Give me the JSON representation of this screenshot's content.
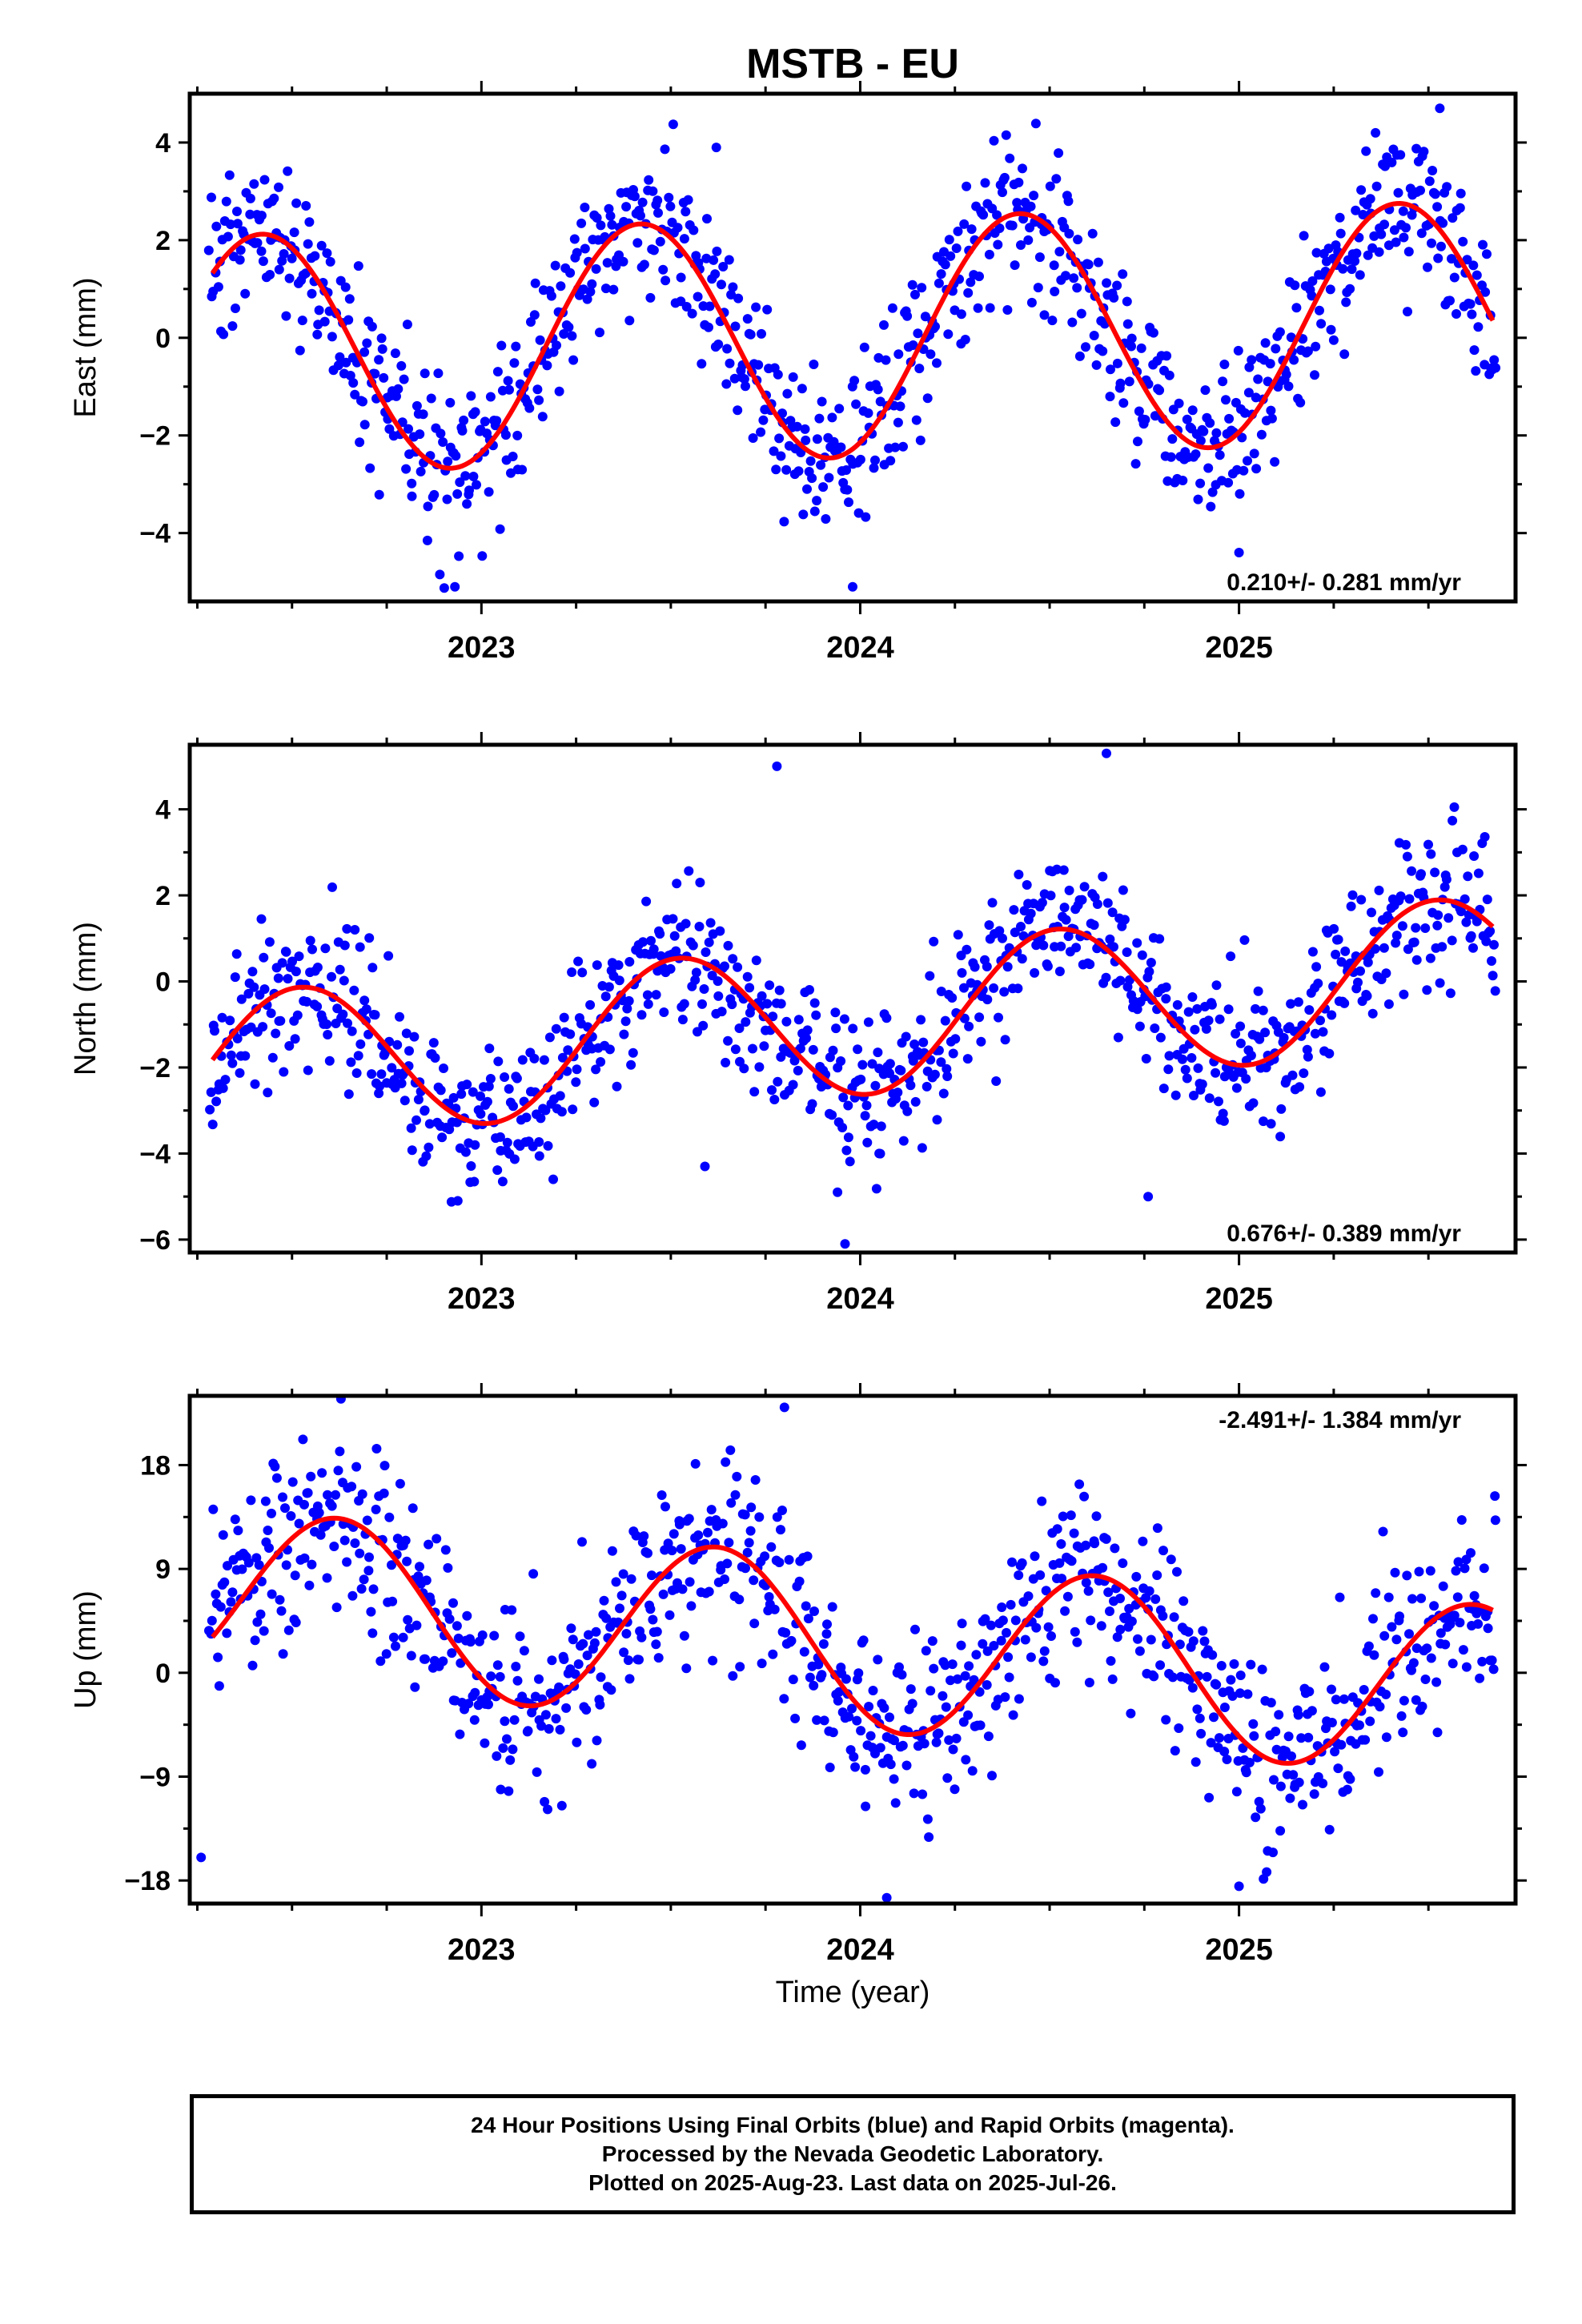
{
  "title": "MSTB - EU",
  "xlabel": "Time (year)",
  "footer": {
    "line1": "24 Hour Positions Using Final Orbits (blue) and Rapid Orbits (magenta).",
    "line2": "Processed by the Nevada Geodetic Laboratory.",
    "line3": "Plotted on 2025-Aug-23. Last data on 2025-Jul-26."
  },
  "colors": {
    "points": "#0000ff",
    "fit": "#ff0000",
    "frame": "#000000"
  },
  "chart_data": [
    {
      "type": "scatter",
      "panel": "east",
      "ylabel": "East (mm)",
      "rate_label": "0.210+/- 0.281 mm/yr",
      "rate_position": "bottom-right",
      "xlim": [
        2022.23,
        2025.73
      ],
      "ylim": [
        -5.4,
        5.0
      ],
      "yticks": [
        -4,
        -2,
        0,
        2,
        4
      ],
      "xticks": [
        2023,
        2024,
        2025
      ],
      "grid": false,
      "trend_rate": 0.21,
      "model": {
        "offset": 0.0,
        "annual_amp": 2.45,
        "annual_peak": 0.42
      },
      "scatter_sd": 0.85,
      "outliers": [
        [
          2022.93,
          -5.1
        ],
        [
          2023.98,
          -5.1
        ],
        [
          2025.0,
          -4.4
        ],
        [
          2023.62,
          3.9
        ],
        [
          2025.53,
          4.7
        ]
      ],
      "series": [
        {
          "name": "Final Orbits (blue)",
          "style": "points",
          "n": 900
        },
        {
          "name": "",
          "style": "fit-line"
        }
      ]
    },
    {
      "type": "scatter",
      "panel": "north",
      "ylabel": "North (mm)",
      "rate_label": "0.676+/- 0.389 mm/yr",
      "rate_position": "bottom-right",
      "xlim": [
        2022.23,
        2025.73
      ],
      "ylim": [
        -6.3,
        5.5
      ],
      "yticks": [
        -6,
        -4,
        -2,
        0,
        2,
        4
      ],
      "xticks": [
        2023,
        2024,
        2025
      ],
      "grid": false,
      "trend_rate": 0.676,
      "model": {
        "offset": -0.9,
        "annual_amp": 1.75,
        "annual_peak": 0.52
      },
      "scatter_sd": 0.9,
      "outliers": [
        [
          2023.96,
          -6.1
        ],
        [
          2023.94,
          -4.9
        ],
        [
          2023.59,
          -4.3
        ],
        [
          2024.05,
          -4.0
        ],
        [
          2024.76,
          -5.0
        ],
        [
          2023.78,
          5.0
        ],
        [
          2024.65,
          5.3
        ]
      ],
      "series": [
        {
          "name": "Final Orbits (blue)",
          "style": "points",
          "n": 900
        },
        {
          "name": "",
          "style": "fit-line"
        }
      ]
    },
    {
      "type": "scatter",
      "panel": "up",
      "ylabel": "Up (mm)",
      "rate_label": "-2.491+/- 1.384 mm/yr",
      "rate_position": "top-right",
      "xlim": [
        2022.23,
        2025.73
      ],
      "ylim": [
        -20,
        24
      ],
      "yticks": [
        -18,
        -9,
        0,
        9,
        18
      ],
      "xticks": [
        2023,
        2024,
        2025
      ],
      "grid": false,
      "trend_rate": -2.491,
      "model": {
        "offset": 2.5,
        "annual_amp": 7.5,
        "annual_peak": 0.62
      },
      "scatter_sd": 4.2,
      "outliers": [
        [
          2023.8,
          23.0
        ],
        [
          2024.07,
          -19.5
        ],
        [
          2025.0,
          -18.5
        ],
        [
          2022.26,
          -16.0
        ]
      ],
      "series": [
        {
          "name": "Final Orbits (blue)",
          "style": "points",
          "n": 900
        },
        {
          "name": "",
          "style": "fit-line"
        }
      ]
    }
  ]
}
